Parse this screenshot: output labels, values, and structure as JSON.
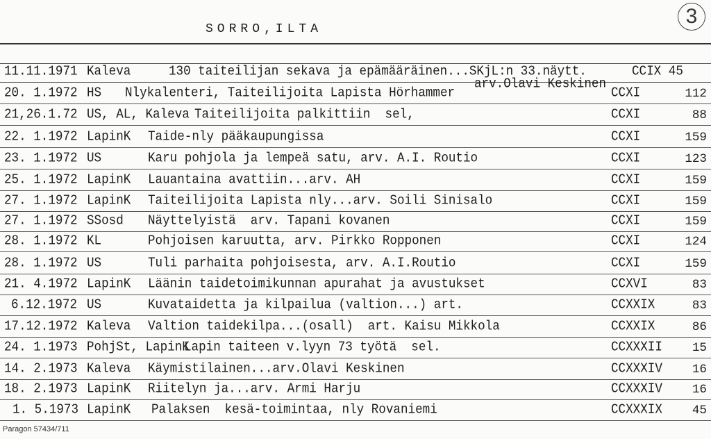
{
  "page_number": "3",
  "header": "SORRO,ILTA",
  "rows": [
    {
      "date": "11.11.1971",
      "source": "Kaleva",
      "title": "130 taiteilijan sekava ja epämääräinen...SKjL:n 33.näytt.",
      "code": "CCIX 45",
      "page": ""
    },
    {
      "date": "20. 1.1972",
      "source": "HS",
      "title": "Nlykalenteri, Taiteilijoita Lapista Hörhammer",
      "note": "arv.Olavi Keskinen",
      "code": "CCXI",
      "page": "112"
    },
    {
      "date": "21,26.1.72",
      "source": "US, AL, Kaleva",
      "title": "Taiteilijoita palkittiin  sel,",
      "code": "CCXI",
      "page": "88"
    },
    {
      "date": "22. 1.1972",
      "source": "LapinK",
      "title": "Taide-nly pääkaupungissa",
      "code": "CCXI",
      "page": "159"
    },
    {
      "date": "23. 1.1972",
      "source": "US",
      "title": "Karu pohjola ja lempeä satu, arv. A.I. Routio",
      "code": "CCXI",
      "page": "123"
    },
    {
      "date": "25. 1.1972",
      "source": "LapinK",
      "title": "Lauantaina avattiin...arv. AH",
      "code": "CCXI",
      "page": "159"
    },
    {
      "date": "27. 1.1972",
      "source": "LapinK",
      "title": "Taiteilijoita Lapista nly...arv. Soili Sinisalo",
      "code": "CCXI",
      "page": "159"
    },
    {
      "date": "27. 1.1972",
      "source": "SSosd",
      "title": "Näyttelyistä  arv. Tapani kovanen",
      "code": "CCXI",
      "page": "159"
    },
    {
      "date": "28. 1.1972",
      "source": "KL",
      "title": "Pohjoisen karuutta, arv. Pirkko Ropponen",
      "code": "CCXI",
      "page": "124"
    },
    {
      "date": "28. 1.1972",
      "source": "US",
      "title": "Tuli parhaita pohjoisesta, arv. A.I.Routio",
      "code": "CCXI",
      "page": "159"
    },
    {
      "date": "21. 4.1972",
      "source": "LapinK",
      "title": "Läänin taidetoimikunnan apurahat ja avustukset",
      "code": "CCXVI",
      "page": "83"
    },
    {
      "date": "6.12.1972",
      "source": "US",
      "title": "Kuvataidetta ja kilpailua (valtion...) art.",
      "code": "CCXXIX",
      "page": "83"
    },
    {
      "date": "17.12.1972",
      "source": "Kaleva",
      "title": "Valtion taidekilpa...(osall)  art. Kaisu Mikkola",
      "code": "CCXXIX",
      "page": "86"
    },
    {
      "date": "24. 1.1973",
      "source": "PohjSt, LapinK",
      "title": "Lapin taiteen v.lyyn 73 työtä  sel.",
      "code": "CCXXXII",
      "page": "15"
    },
    {
      "date": "14. 2.1973",
      "source": "Kaleva",
      "title": "Käymistilainen...arv.Olavi Keskinen",
      "code": "CCXXXIV",
      "page": "16"
    },
    {
      "date": "18. 2.1973",
      "source": "LapinK",
      "title": "Riitelyn ja...arv. Armi Harju",
      "code": "CCXXXIV",
      "page": "16"
    },
    {
      "date": "1. 5.1973",
      "source": "LapinK",
      "title": "Palaksen  kesä-toimintaa, nly Rovaniemi",
      "code": "CCXXXIX",
      "page": "45"
    }
  ],
  "footer": "Paragon 57434/711"
}
